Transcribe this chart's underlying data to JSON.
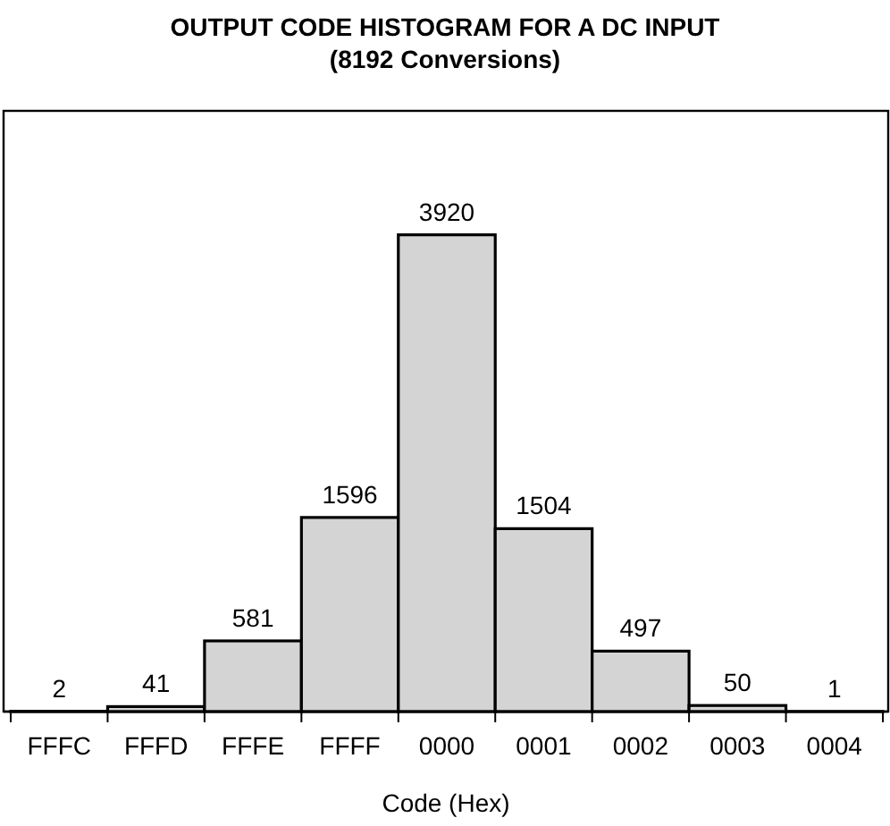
{
  "chart_data": {
    "type": "bar",
    "title": "OUTPUT CODE HISTOGRAM FOR A DC INPUT",
    "subtitle": "(8192 Conversions)",
    "xlabel": "Code (Hex)",
    "categories": [
      "FFFC",
      "FFFD",
      "FFFE",
      "FFFF",
      "0000",
      "0001",
      "0002",
      "0003",
      "0004"
    ],
    "values": [
      2,
      41,
      581,
      1596,
      3920,
      1504,
      497,
      50,
      1
    ],
    "color": "#d4d4d4",
    "data_labels": true
  }
}
